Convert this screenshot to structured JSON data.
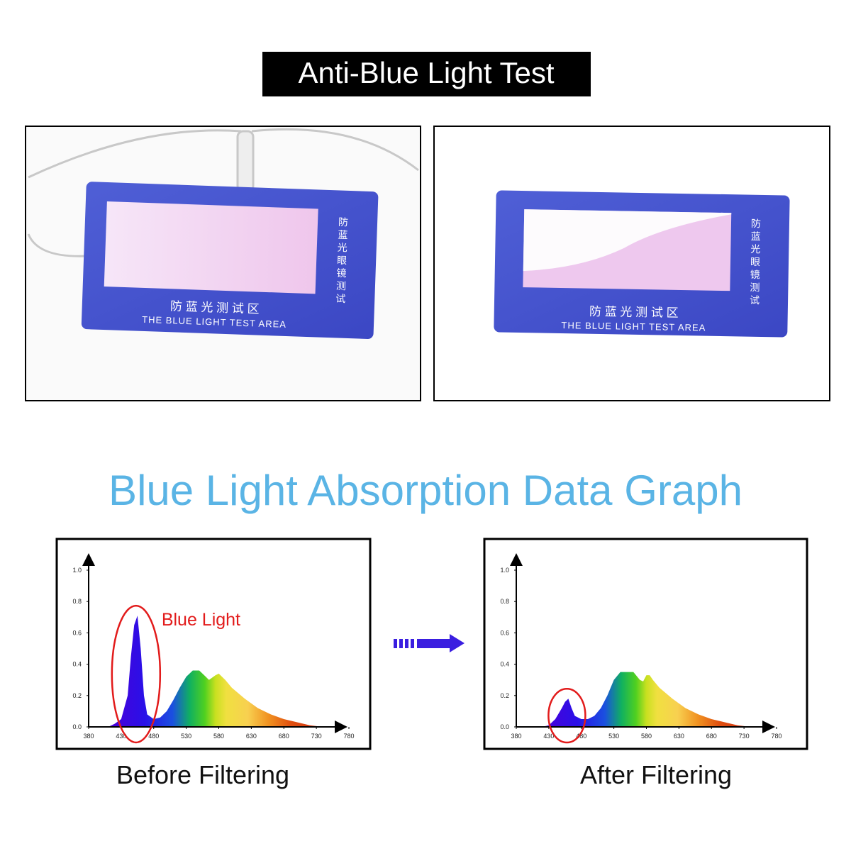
{
  "title": "Anti-Blue Light Test",
  "photos": [
    {
      "card_vertical": "防蓝光眼镜测试",
      "card_title": "防 蓝 光 测 试 区",
      "card_subtitle": "THE BLUE LIGHT TEST AREA"
    },
    {
      "card_vertical": "防蓝光眼镜测试",
      "card_title": "防 蓝 光 测 试 区",
      "card_subtitle": "THE BLUE LIGHT TEST AREA"
    }
  ],
  "graph_title": "Blue Light Absorption Data Graph",
  "chart_data": [
    {
      "type": "area",
      "caption": "Before Filtering",
      "annotation": "Blue Light",
      "xlim": [
        380,
        780
      ],
      "ylim": [
        0,
        1
      ],
      "xticks": [
        380,
        430,
        480,
        530,
        580,
        630,
        680,
        730,
        780
      ],
      "yticks": [
        {
          "value": 0,
          "label": "0.0"
        },
        0.2,
        0.4,
        0.6,
        0.8,
        {
          "value": 1,
          "label": "1.0"
        }
      ],
      "x": [
        410,
        420,
        430,
        440,
        445,
        450,
        455,
        460,
        465,
        470,
        480,
        490,
        500,
        510,
        520,
        530,
        540,
        550,
        560,
        565,
        575,
        580,
        590,
        600,
        620,
        640,
        660,
        680,
        700,
        720,
        740
      ],
      "values": [
        0,
        0.02,
        0.05,
        0.2,
        0.45,
        0.65,
        0.71,
        0.5,
        0.2,
        0.08,
        0.05,
        0.06,
        0.1,
        0.17,
        0.25,
        0.32,
        0.36,
        0.36,
        0.32,
        0.3,
        0.33,
        0.34,
        0.3,
        0.25,
        0.18,
        0.12,
        0.08,
        0.05,
        0.03,
        0.01,
        0
      ]
    },
    {
      "type": "area",
      "caption": "After Filtering",
      "xlim": [
        380,
        780
      ],
      "ylim": [
        0,
        1
      ],
      "xticks": [
        380,
        430,
        480,
        530,
        580,
        630,
        680,
        730,
        780
      ],
      "yticks": [
        {
          "value": 0,
          "label": "0.0"
        },
        0.2,
        0.4,
        0.6,
        0.8,
        {
          "value": 1,
          "label": "1.0"
        }
      ],
      "x": [
        420,
        430,
        440,
        450,
        455,
        460,
        465,
        470,
        480,
        490,
        500,
        510,
        520,
        530,
        540,
        550,
        560,
        570,
        575,
        580,
        585,
        590,
        600,
        620,
        640,
        660,
        680,
        700,
        720,
        740
      ],
      "values": [
        0,
        0.01,
        0.05,
        0.12,
        0.16,
        0.18,
        0.12,
        0.07,
        0.05,
        0.05,
        0.07,
        0.12,
        0.2,
        0.3,
        0.35,
        0.35,
        0.35,
        0.3,
        0.29,
        0.33,
        0.33,
        0.3,
        0.25,
        0.18,
        0.12,
        0.08,
        0.05,
        0.03,
        0.01,
        0
      ]
    }
  ]
}
